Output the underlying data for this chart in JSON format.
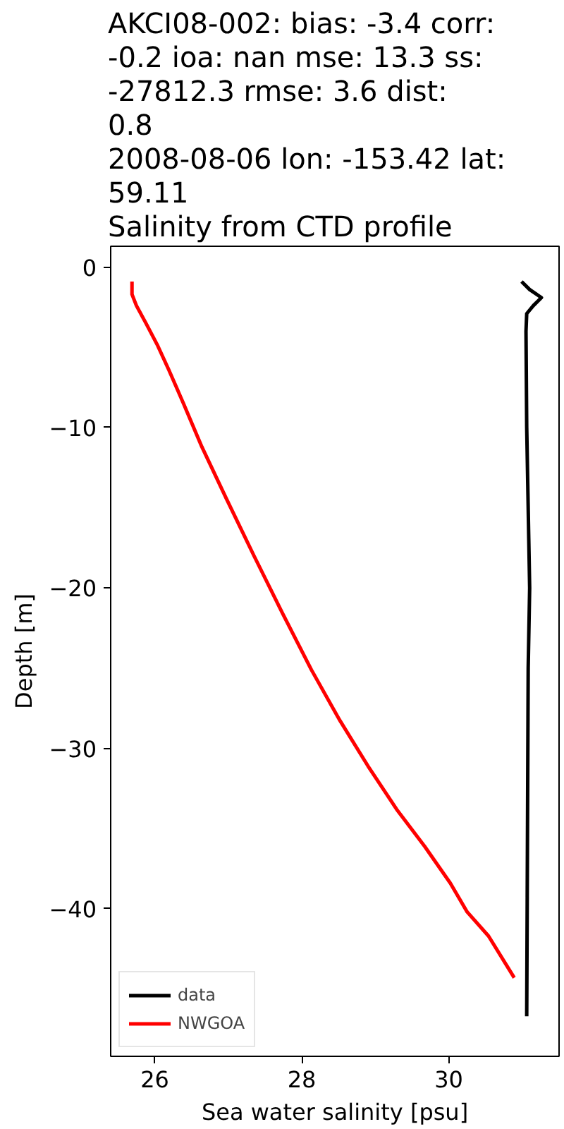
{
  "chart_data": {
    "type": "line",
    "title": "AKCI08-002: bias: -3.4  corr:\n-0.2  ioa: nan  mse: 13.3  ss:\n-27812.3  rmse: 3.6  dist:\n0.8\n2008-08-06 lon: -153.42 lat:\n59.11\nSalinity from CTD profile",
    "xlabel": "Sea water salinity [psu]",
    "ylabel": "Depth [m]",
    "xlim": [
      25.4,
      31.5
    ],
    "xticks": [
      26,
      28,
      30
    ],
    "ylim": [
      -49.2,
      1.3
    ],
    "yticks": [
      {
        "value": -40,
        "label": "−40"
      },
      {
        "value": -30,
        "label": "−30"
      },
      {
        "value": -20,
        "label": "−20"
      },
      {
        "value": -10,
        "label": "−10"
      },
      0
    ],
    "legend": "bottom left",
    "grid": false,
    "series": [
      {
        "name": "data",
        "color": "#000000",
        "x": [
          30.99,
          31.1,
          31.26,
          31.15,
          31.06,
          31.05,
          31.06,
          31.1,
          31.08,
          31.06
        ],
        "values": [
          -0.9,
          -1.4,
          -1.9,
          -2.4,
          -2.9,
          -4,
          -10,
          -20,
          -25,
          -46.7
        ]
      },
      {
        "name": "NWGOA",
        "color": "#ff0000",
        "x": [
          25.69,
          25.69,
          25.75,
          25.88,
          26.04,
          26.19,
          26.39,
          26.64,
          26.97,
          27.35,
          27.74,
          28.13,
          28.51,
          28.9,
          29.29,
          29.67,
          30.02,
          30.25,
          30.54,
          30.89
        ],
        "values": [
          -0.9,
          -1.7,
          -2.4,
          -3.5,
          -4.9,
          -6.4,
          -8.5,
          -11.2,
          -14.4,
          -18,
          -21.6,
          -25.1,
          -28.2,
          -31.1,
          -33.8,
          -36.1,
          -38.4,
          -40.2,
          -41.7,
          -44.3
        ]
      }
    ]
  }
}
